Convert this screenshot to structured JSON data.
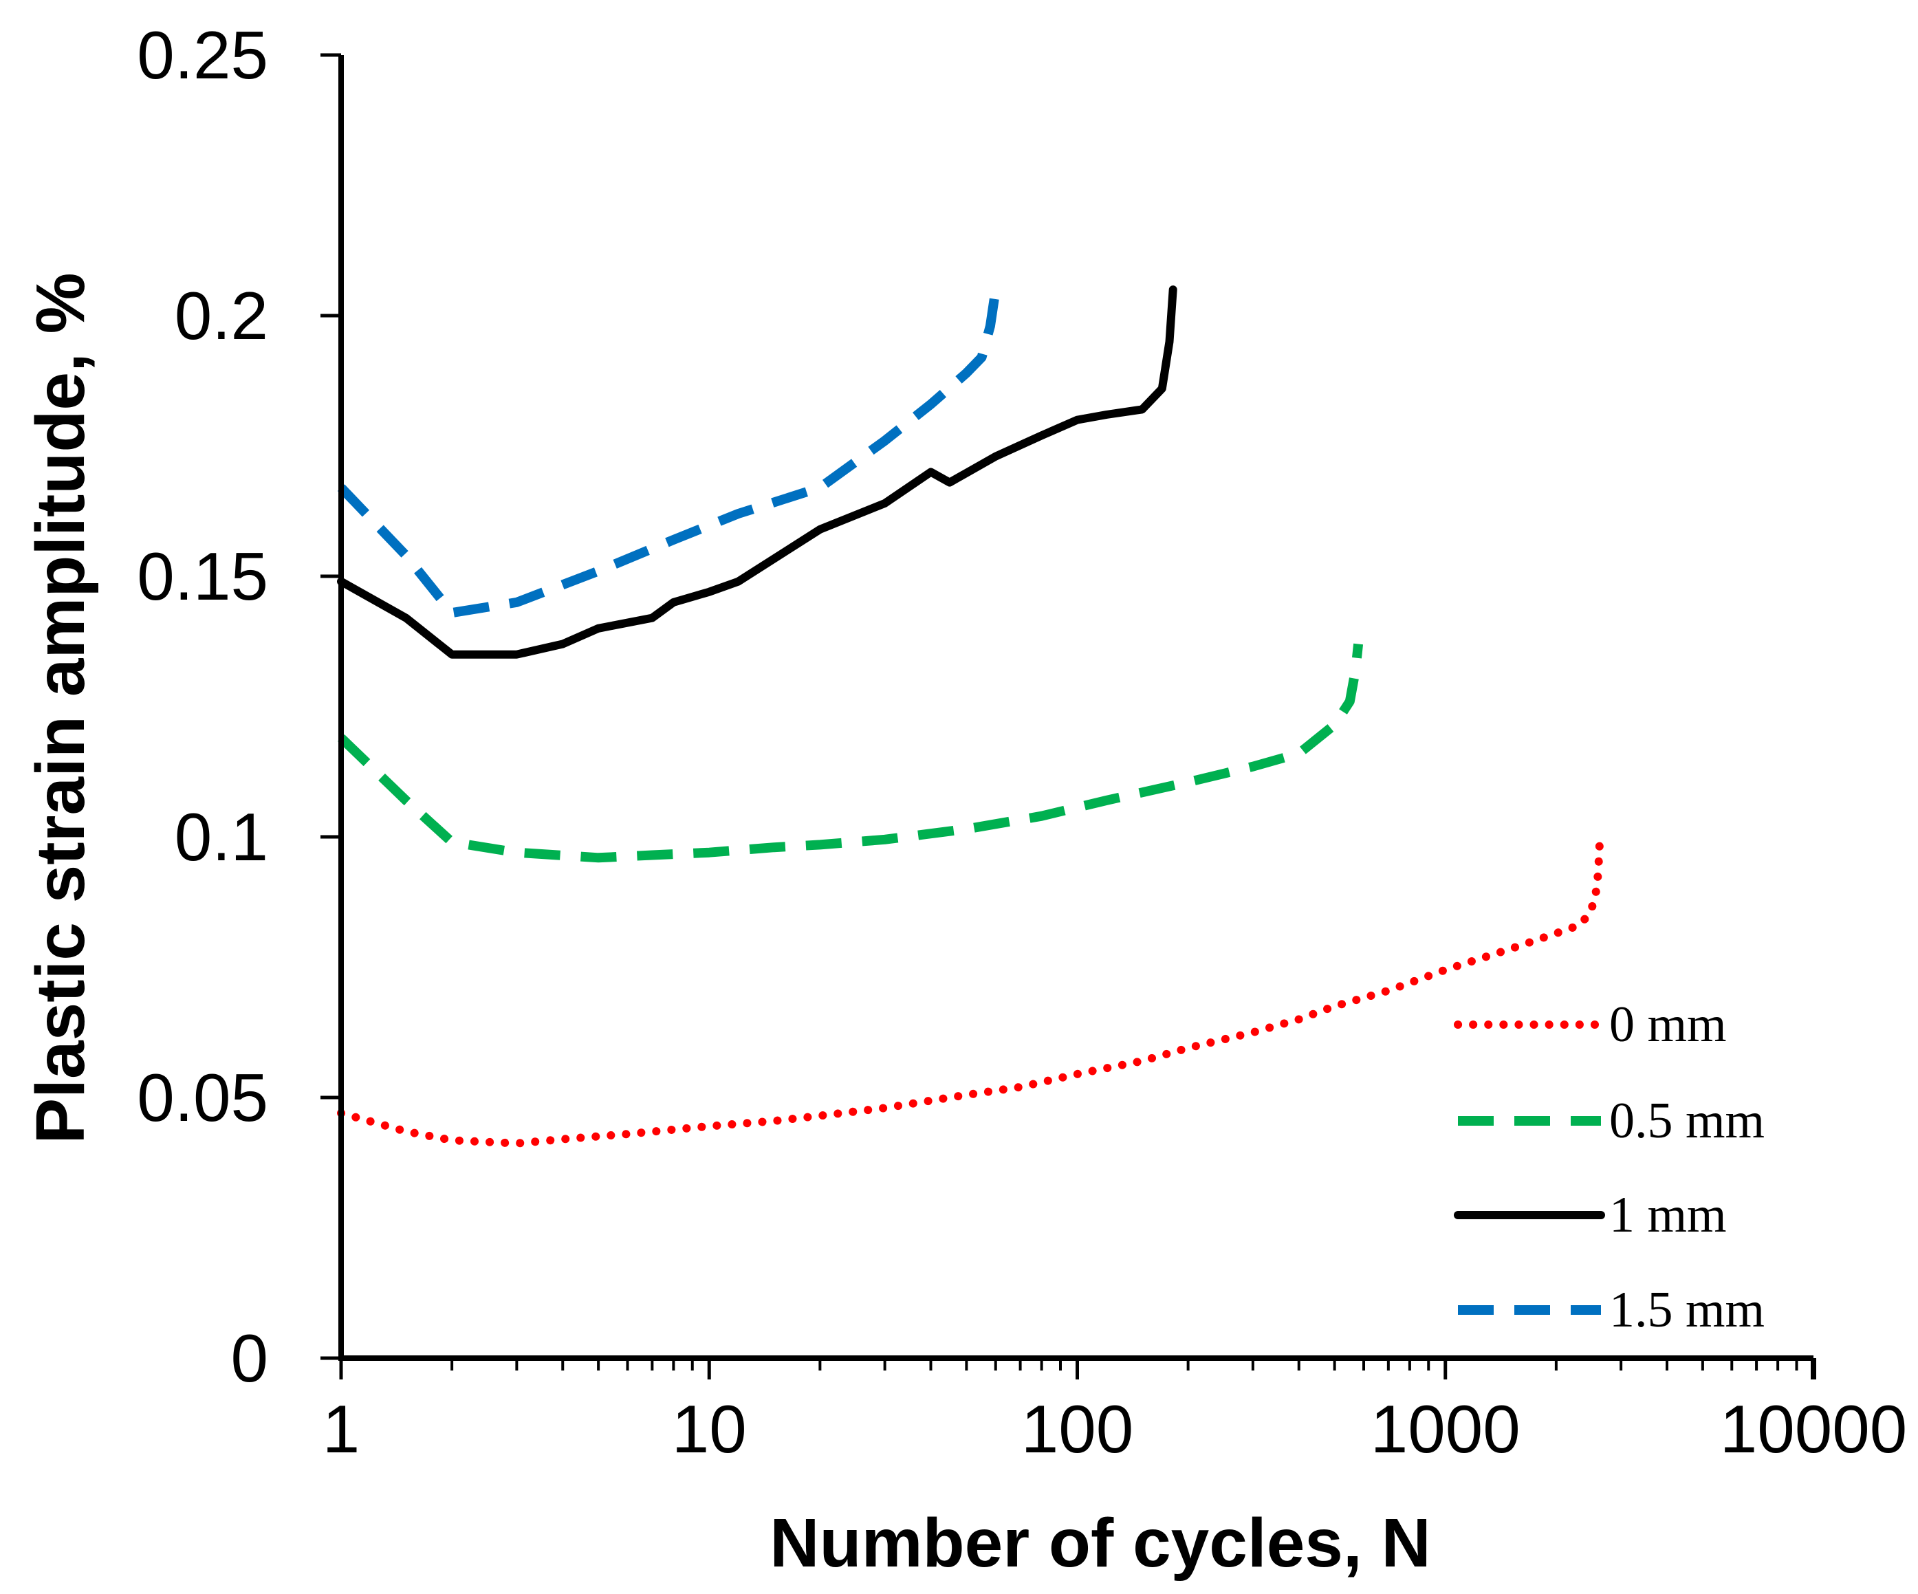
{
  "chart_data": {
    "type": "line",
    "xlabel": "Number of cycles, N",
    "ylabel": "Plastic strain amplitude, %",
    "xscale": "log",
    "xlim": [
      1,
      10000
    ],
    "ylim": [
      0,
      0.25
    ],
    "xticks": [
      1,
      10,
      100,
      1000,
      10000
    ],
    "xtick_labels": [
      "1",
      "10",
      "100",
      "1000",
      "10000"
    ],
    "yticks": [
      0,
      0.05,
      0.1,
      0.15,
      0.2,
      0.25
    ],
    "ytick_labels": [
      "0",
      "0.05",
      "0.1",
      "0.15",
      "0.2",
      "0.25"
    ],
    "grid": false,
    "legend_position": "bottom-right",
    "series": [
      {
        "name": "0 mm",
        "color": "#ff0000",
        "style": "dotted",
        "points": [
          [
            1,
            0.047
          ],
          [
            1.5,
            0.0435
          ],
          [
            2,
            0.0418
          ],
          [
            3,
            0.0412
          ],
          [
            4,
            0.042
          ],
          [
            6,
            0.043
          ],
          [
            10,
            0.0445
          ],
          [
            15,
            0.0455
          ],
          [
            20,
            0.0465
          ],
          [
            30,
            0.048
          ],
          [
            50,
            0.0505
          ],
          [
            70,
            0.052
          ],
          [
            100,
            0.0545
          ],
          [
            150,
            0.057
          ],
          [
            200,
            0.0595
          ],
          [
            300,
            0.0625
          ],
          [
            400,
            0.065
          ],
          [
            500,
            0.0675
          ],
          [
            700,
            0.0705
          ],
          [
            1000,
            0.0745
          ],
          [
            1500,
            0.0785
          ],
          [
            2000,
            0.0815
          ],
          [
            2300,
            0.083
          ],
          [
            2450,
            0.085
          ],
          [
            2550,
            0.088
          ],
          [
            2600,
            0.093
          ],
          [
            2630,
            0.1
          ]
        ]
      },
      {
        "name": "0.5 mm",
        "color": "#00b050",
        "style": "dashed",
        "points": [
          [
            1,
            0.119
          ],
          [
            1.5,
            0.107
          ],
          [
            2,
            0.099
          ],
          [
            3,
            0.097
          ],
          [
            5,
            0.096
          ],
          [
            7,
            0.0965
          ],
          [
            10,
            0.097
          ],
          [
            15,
            0.098
          ],
          [
            20,
            0.0985
          ],
          [
            30,
            0.0995
          ],
          [
            50,
            0.1015
          ],
          [
            80,
            0.104
          ],
          [
            120,
            0.107
          ],
          [
            200,
            0.1105
          ],
          [
            300,
            0.1135
          ],
          [
            400,
            0.116
          ],
          [
            500,
            0.1215
          ],
          [
            550,
            0.126
          ],
          [
            570,
            0.132
          ],
          [
            580,
            0.137
          ]
        ]
      },
      {
        "name": "1 mm",
        "color": "#000000",
        "style": "solid",
        "points": [
          [
            1,
            0.149
          ],
          [
            1.5,
            0.142
          ],
          [
            2,
            0.135
          ],
          [
            3,
            0.135
          ],
          [
            4,
            0.137
          ],
          [
            5,
            0.14
          ],
          [
            7,
            0.142
          ],
          [
            8,
            0.145
          ],
          [
            10,
            0.147
          ],
          [
            12,
            0.149
          ],
          [
            20,
            0.159
          ],
          [
            30,
            0.164
          ],
          [
            40,
            0.17
          ],
          [
            45,
            0.168
          ],
          [
            60,
            0.173
          ],
          [
            80,
            0.177
          ],
          [
            100,
            0.18
          ],
          [
            120,
            0.181
          ],
          [
            150,
            0.182
          ],
          [
            170,
            0.186
          ],
          [
            178,
            0.195
          ],
          [
            182,
            0.205
          ]
        ]
      },
      {
        "name": "1.5 mm",
        "color": "#0070c0",
        "style": "dashed",
        "points": [
          [
            1,
            0.167
          ],
          [
            1.5,
            0.154
          ],
          [
            2,
            0.143
          ],
          [
            3,
            0.145
          ],
          [
            5,
            0.151
          ],
          [
            8,
            0.157
          ],
          [
            12,
            0.162
          ],
          [
            20,
            0.167
          ],
          [
            30,
            0.176
          ],
          [
            40,
            0.183
          ],
          [
            50,
            0.189
          ],
          [
            55,
            0.192
          ],
          [
            58,
            0.198
          ],
          [
            60,
            0.205
          ]
        ]
      }
    ]
  }
}
